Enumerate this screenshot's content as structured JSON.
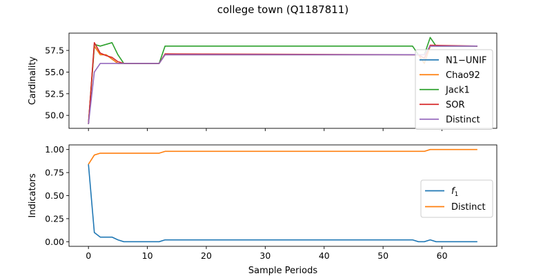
{
  "figure": {
    "title": "college town (Q1187811)"
  },
  "chart_data": [
    {
      "type": "line",
      "ylabel": "Cardinality",
      "xlabel": "",
      "xlim": [
        -3.3,
        69.3
      ],
      "ylim": [
        48.5,
        59.5
      ],
      "xticks": [
        0,
        10,
        20,
        30,
        40,
        50,
        60
      ],
      "yticks": [
        50.0,
        52.5,
        55.0,
        57.5
      ],
      "ytick_labels": [
        "50.0",
        "52.5",
        "55.0",
        "57.5"
      ],
      "show_xtick_labels": false,
      "legend_placement": "right",
      "series": [
        {
          "name": "N1−UNIF",
          "color": "#1f77b4",
          "points": [
            [
              0,
              49
            ],
            [
              1,
              58
            ],
            [
              2,
              57
            ],
            [
              3,
              57
            ],
            [
              5,
              56
            ],
            [
              6,
              56
            ],
            [
              12,
              56
            ],
            [
              13,
              57
            ],
            [
              56,
              57
            ],
            [
              57,
              56
            ],
            [
              58,
              58
            ],
            [
              66,
              58
            ]
          ]
        },
        {
          "name": "Chao92",
          "color": "#ff7f0e",
          "points": [
            [
              0,
              49
            ],
            [
              1,
              58
            ],
            [
              2,
              57
            ],
            [
              3,
              57
            ],
            [
              5,
              56
            ],
            [
              6,
              56
            ],
            [
              12,
              56
            ],
            [
              13,
              57
            ],
            [
              56,
              57
            ],
            [
              57,
              56
            ],
            [
              58,
              58
            ],
            [
              66,
              58
            ]
          ]
        },
        {
          "name": "Jack1",
          "color": "#2ca02c",
          "points": [
            [
              0,
              49
            ],
            [
              1,
              58.2
            ],
            [
              2,
              58
            ],
            [
              3,
              58.2
            ],
            [
              4,
              58.4
            ],
            [
              5,
              57
            ],
            [
              6,
              56
            ],
            [
              12,
              56
            ],
            [
              13,
              58
            ],
            [
              55,
              58
            ],
            [
              56,
              57
            ],
            [
              57,
              57
            ],
            [
              58,
              59
            ],
            [
              59,
              58
            ],
            [
              66,
              58
            ]
          ]
        },
        {
          "name": "SOR",
          "color": "#d62728",
          "points": [
            [
              0,
              49
            ],
            [
              1,
              58.4
            ],
            [
              2,
              57.2
            ],
            [
              3,
              56.9
            ],
            [
              4,
              56.7
            ],
            [
              5,
              56.2
            ],
            [
              6,
              56
            ],
            [
              12,
              56
            ],
            [
              13,
              57.1
            ],
            [
              56,
              57
            ],
            [
              57,
              56.6
            ],
            [
              58,
              58.1
            ],
            [
              66,
              58
            ]
          ]
        },
        {
          "name": "Distinct",
          "color": "#9467bd",
          "points": [
            [
              0,
              49
            ],
            [
              1,
              55
            ],
            [
              2,
              56
            ],
            [
              12,
              56
            ],
            [
              13,
              57
            ],
            [
              57,
              57
            ],
            [
              58,
              58
            ],
            [
              66,
              58
            ]
          ]
        }
      ]
    },
    {
      "type": "line",
      "ylabel": "Indicators",
      "xlabel": "Sample Periods",
      "xlim": [
        -3.3,
        69.3
      ],
      "ylim": [
        -0.05,
        1.05
      ],
      "xticks": [
        0,
        10,
        20,
        30,
        40,
        50,
        60
      ],
      "yticks": [
        0.0,
        0.25,
        0.5,
        0.75,
        1.0
      ],
      "ytick_labels": [
        "0.00",
        "0.25",
        "0.50",
        "0.75",
        "1.00"
      ],
      "show_xtick_labels": true,
      "legend_placement": "center right",
      "series": [
        {
          "name": "f1",
          "legend_base": "f",
          "legend_sub": "1",
          "color": "#1f77b4",
          "points": [
            [
              0,
              0.84
            ],
            [
              1,
              0.1
            ],
            [
              2,
              0.05
            ],
            [
              4,
              0.05
            ],
            [
              5,
              0.02
            ],
            [
              6,
              0.0
            ],
            [
              12,
              0.0
            ],
            [
              13,
              0.02
            ],
            [
              55,
              0.02
            ],
            [
              56,
              0.0
            ],
            [
              57,
              0.0
            ],
            [
              58,
              0.02
            ],
            [
              59,
              0.0
            ],
            [
              66,
              0.0
            ]
          ]
        },
        {
          "name": "Distinct",
          "color": "#ff7f0e",
          "points": [
            [
              0,
              0.84
            ],
            [
              1,
              0.94
            ],
            [
              2,
              0.96
            ],
            [
              12,
              0.96
            ],
            [
              13,
              0.98
            ],
            [
              57,
              0.98
            ],
            [
              58,
              1.0
            ],
            [
              66,
              1.0
            ]
          ]
        }
      ]
    }
  ]
}
